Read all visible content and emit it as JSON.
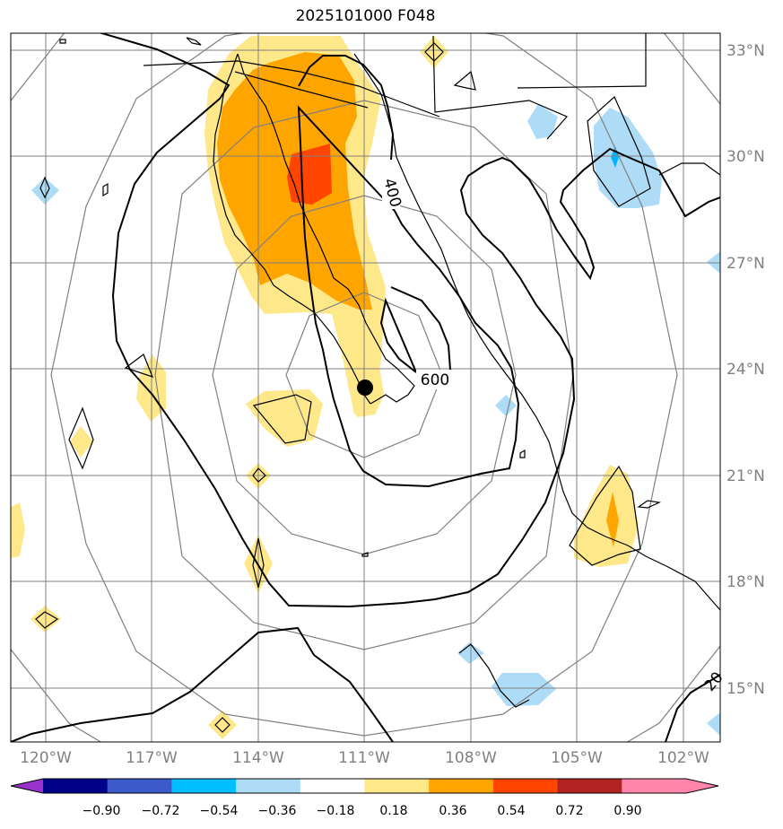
{
  "title": "2025101000 F048",
  "map": {
    "lat_labels": [
      "33°N",
      "30°N",
      "27°N",
      "24°N",
      "21°N",
      "18°N",
      "15°N"
    ],
    "lon_labels": [
      "120°W",
      "117°W",
      "114°W",
      "111°W",
      "108°W",
      "105°W",
      "102°W"
    ],
    "contour_labels": [
      "400",
      "600",
      "20"
    ],
    "center_marker": "storm-center",
    "colors": {
      "grid": "#808080",
      "coast": "#000000",
      "yellow": "#ffe88a",
      "orange": "#ffa500",
      "red_orange": "#ff4500",
      "light_blue": "#aedcf7",
      "cyan": "#00b4ff"
    }
  },
  "colorbar": {
    "ticks": [
      "−0.90",
      "−0.72",
      "−0.54",
      "−0.36",
      "−0.18",
      "0.18",
      "0.36",
      "0.54",
      "0.72",
      "0.90"
    ],
    "colors": [
      "#9932cc",
      "#00008b",
      "#3b5bcc",
      "#00bfff",
      "#aedcf7",
      "#ffffff",
      "#ffe88a",
      "#ffa500",
      "#ff4500",
      "#b22222",
      "#ff85aa",
      "#ff85aa"
    ]
  }
}
